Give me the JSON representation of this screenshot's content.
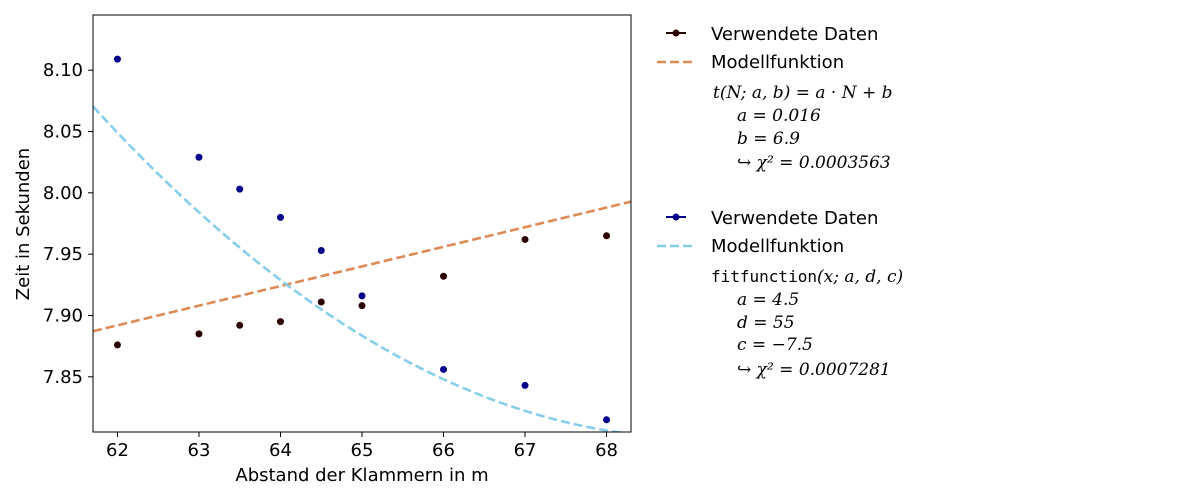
{
  "chart_data": {
    "type": "scatter",
    "xlabel": "Abstand der Klammern in m",
    "ylabel": "Zeit in Sekunden",
    "xlim": [
      61.7,
      68.3
    ],
    "ylim": [
      7.805,
      8.145
    ],
    "xticks": [
      "62",
      "63",
      "64",
      "65",
      "66",
      "67",
      "68"
    ],
    "yticks": [
      "7.85",
      "7.90",
      "7.95",
      "8.00",
      "8.05",
      "8.10"
    ],
    "grid": false,
    "legend_position": "outside-right",
    "series": [
      {
        "name": "Verwendete Daten",
        "kind": "points",
        "color": "#2b0000",
        "x": [
          62,
          63,
          63.5,
          64,
          64.5,
          65,
          66,
          67,
          68
        ],
        "y": [
          7.876,
          7.885,
          7.892,
          7.895,
          7.911,
          7.908,
          7.932,
          7.962,
          7.965
        ]
      },
      {
        "name": "Modellfunktion",
        "kind": "line",
        "color": "#dd8a55",
        "model": "linear",
        "params": {
          "a": 0.016,
          "b": 6.9
        }
      },
      {
        "name": "Verwendete Daten",
        "kind": "points",
        "color": "#00008b",
        "x": [
          62,
          63,
          63.5,
          64,
          64.5,
          65,
          66,
          67,
          68
        ],
        "y": [
          8.109,
          8.029,
          8.003,
          7.98,
          7.953,
          7.916,
          7.856,
          7.843,
          7.815
        ]
      },
      {
        "name": "Modellfunktion",
        "kind": "line",
        "color": "#87ceeb",
        "model": "quadratic",
        "params": {
          "a": 4.5,
          "d": 55,
          "c": -7.5
        }
      }
    ]
  },
  "legend": {
    "entries": [
      {
        "label": "Verwendete Daten"
      },
      {
        "label": "Modellfunktion"
      },
      {
        "label": "Verwendete Daten"
      },
      {
        "label": "Modellfunktion"
      }
    ],
    "fit1": {
      "formula": "t(N; a, b) = a · N + b",
      "a": "a = 0.016",
      "b": "b = 6.9",
      "chi2": "↪ χ² = 0.0003563"
    },
    "fit2": {
      "formula_name": "fitfunction",
      "formula_args": "(x; a, d, c)",
      "a": "a = 4.5",
      "d": "d = 55",
      "c": "c = −7.5",
      "chi2": "↪ χ² = 0.0007281"
    }
  }
}
